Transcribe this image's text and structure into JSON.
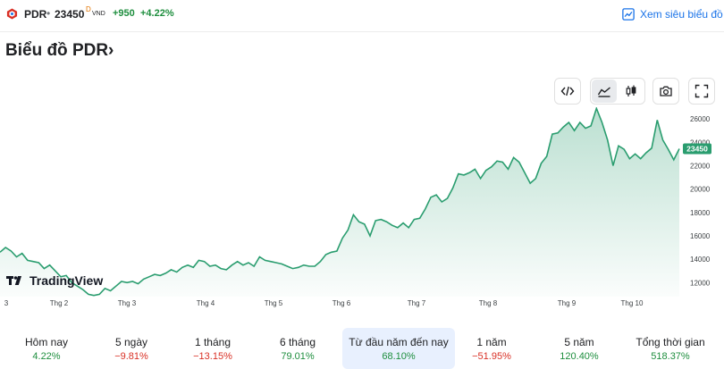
{
  "header": {
    "ticker": "PDR",
    "separator": "•",
    "price": "23450",
    "price_sup": "D",
    "currency": "VND",
    "change": "+950",
    "change_pct": "+4.22%",
    "advanced_chart_label": "Xem siêu biểu đồ"
  },
  "page_title": "Biểu đồ PDR›",
  "toolbar": {
    "icons": [
      "embed-code-icon",
      "area-chart-icon",
      "candlestick-icon",
      "camera-icon",
      "fullscreen-icon"
    ],
    "selected": "area-chart-icon"
  },
  "tradingview_label": "TradingView",
  "colors": {
    "line": "#2a9d6f",
    "positive": "#1e8e3e",
    "negative": "#d93025",
    "link": "#1a73e8",
    "price_tag": "#2a9d6f"
  },
  "chart_data": {
    "type": "area",
    "xlabels": [
      "3",
      "Thg 2",
      "Thg 3",
      "Thg 4",
      "Thg 5",
      "Thg 6",
      "Thg 7",
      "Thg 8",
      "Thg 9",
      "Thg 10"
    ],
    "yticks": [
      "12000",
      "14000",
      "16000",
      "18000",
      "20000",
      "22000",
      "24000",
      "26000"
    ],
    "ylim": [
      10800,
      27000
    ],
    "last_price_label": "23450",
    "grid": false,
    "series": [
      {
        "values": [
          14600,
          15000,
          14700,
          14200,
          14500,
          13900,
          13800,
          13700,
          13200,
          13500,
          13000,
          12500,
          12600,
          12000,
          11700,
          11400,
          11000,
          10900,
          11000,
          11500,
          11300,
          11700,
          12100,
          12000,
          12100,
          11900,
          12300,
          12500,
          12700,
          12600,
          12800,
          13100,
          12900,
          13300,
          13500,
          13300,
          13900,
          13800,
          13400,
          13500,
          13200,
          13100,
          13500,
          13800,
          13500,
          13700,
          13400,
          14200,
          13900,
          13800,
          13700,
          13600,
          13400,
          13200,
          13300,
          13500,
          13400,
          13400,
          13800,
          14400,
          14600,
          14700,
          15800,
          16500,
          17800,
          17200,
          17000,
          16000,
          17300,
          17400,
          17200,
          16900,
          16700,
          17100,
          16700,
          17400,
          17500,
          18300,
          19300,
          19500,
          18900,
          19200,
          20100,
          21300,
          21200,
          21400,
          21700,
          20900,
          21600,
          21900,
          22400,
          22300,
          21700,
          22700,
          22300,
          21400,
          20500,
          20900,
          22200,
          22800,
          24700,
          24800,
          25300,
          25700,
          25000,
          25700,
          25200,
          25400,
          26900,
          25700,
          24200,
          22000,
          23700,
          23400,
          22600,
          23000,
          22600,
          23100,
          23500,
          25900,
          24200,
          23400,
          22500,
          23450
        ]
      }
    ]
  },
  "periods": [
    {
      "label": "Hôm nay",
      "value": "4.22%",
      "sign": "pos"
    },
    {
      "label": "5 ngày",
      "value": "−9.81%",
      "sign": "neg"
    },
    {
      "label": "1 tháng",
      "value": "−13.15%",
      "sign": "neg"
    },
    {
      "label": "6 tháng",
      "value": "79.01%",
      "sign": "pos"
    },
    {
      "label": "Từ đầu năm đến nay",
      "value": "68.10%",
      "sign": "pos",
      "active": true
    },
    {
      "label": "1 năm",
      "value": "−51.95%",
      "sign": "neg"
    },
    {
      "label": "5 năm",
      "value": "120.40%",
      "sign": "pos"
    },
    {
      "label": "Tổng thời gian",
      "value": "518.37%",
      "sign": "pos"
    }
  ]
}
